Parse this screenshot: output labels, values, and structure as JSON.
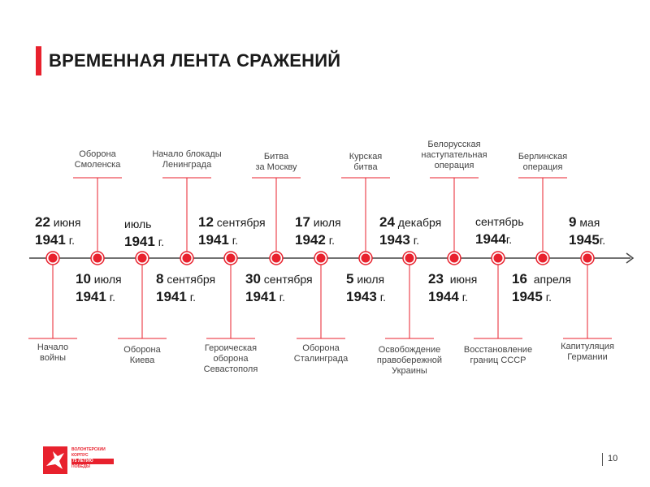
{
  "slide": {
    "title": "ВРЕМЕННАЯ ЛЕНТА СРАЖЕНИЙ",
    "page_number": "10",
    "accent_color": "#e8212d",
    "line_color": "#444444"
  },
  "logo": {
    "lines": [
      "ВОЛОНТЁРСКИЙ",
      "КОРПУС",
      "75 ЛЕТИЮ",
      "ПОБЕДЫ"
    ]
  },
  "events": [
    {
      "id": "e1",
      "side": "below",
      "date_big": "22",
      "date_sm": " июня",
      "year": "1941",
      "year_suffix": " г.",
      "label": "Начало\nвойны"
    },
    {
      "id": "e2",
      "side": "above",
      "date_big": "10",
      "date_sm": " июля",
      "year": "1941",
      "year_suffix": " г.",
      "label": "Оборона\nСмоленска"
    },
    {
      "id": "e3",
      "side": "below",
      "date_big": "",
      "date_sm": "июль",
      "year": "1941",
      "year_suffix": " г.",
      "label": "Оборона\nКиева"
    },
    {
      "id": "e4",
      "side": "above",
      "date_big": "8",
      "date_sm": " сентября",
      "year": "1941",
      "year_suffix": " г.",
      "label": "Начало блокады\nЛенинграда"
    },
    {
      "id": "e5",
      "side": "below",
      "date_big": "12",
      "date_sm": " сентября",
      "year": "1941",
      "year_suffix": " г.",
      "label": "Героическая\nоборона\nСевастополя"
    },
    {
      "id": "e6",
      "side": "above",
      "date_big": "30",
      "date_sm": " сентября",
      "year": "1941",
      "year_suffix": " г.",
      "label": "Битва\nза Москву"
    },
    {
      "id": "e7",
      "side": "below",
      "date_big": "17",
      "date_sm": " июля",
      "year": "1942",
      "year_suffix": " г.",
      "label": "Оборона\nСталинграда"
    },
    {
      "id": "e8",
      "side": "above",
      "date_big": "5",
      "date_sm": " июля",
      "year": "1943",
      "year_suffix": " г.",
      "label": "Курская\nбитва"
    },
    {
      "id": "e9",
      "side": "below",
      "date_big": "24",
      "date_sm": " декабря",
      "year": "1943",
      "year_suffix": " г.",
      "label": "Освобождение\nправобережной\nУкраины"
    },
    {
      "id": "e10",
      "side": "above",
      "date_big": "23",
      "date_sm": "  июня",
      "year": "1944",
      "year_suffix": " г.",
      "label": "Белорусская\nнаступательная\nоперация"
    },
    {
      "id": "e11",
      "side": "below",
      "date_big": "",
      "date_sm": "сентябрь",
      "year": "1944",
      "year_suffix": "г.",
      "label": "Восстановление\nграниц СССР"
    },
    {
      "id": "e12",
      "side": "above",
      "date_big": "16",
      "date_sm": "  апреля",
      "year": "1945",
      "year_suffix": " г.",
      "label": "Берлинская\nоперация"
    },
    {
      "id": "e13",
      "side": "below",
      "date_big": "9",
      "date_sm": " мая",
      "year": "1945",
      "year_suffix": "г.",
      "label": "Капитуляция\nГермании"
    }
  ]
}
